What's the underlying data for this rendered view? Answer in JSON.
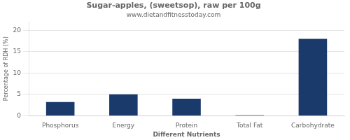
{
  "chart_data": {
    "type": "bar",
    "title": "Sugar-apples, (sweetsop), raw per 100g",
    "subtitle": "www.dietandfitnesstoday.com",
    "xlabel": "Different Nutrients",
    "ylabel": "Percentage of RDH (%)",
    "categories": [
      "Phosphorus",
      "Energy",
      "Protein",
      "Total Fat",
      "Carbohydrate"
    ],
    "values": [
      3.2,
      5.0,
      4.0,
      0.15,
      18.0
    ],
    "color": "#1a3a6b",
    "ylim": [
      0,
      22
    ],
    "yticks": [
      0,
      5,
      10,
      15,
      20
    ],
    "grid": true
  }
}
